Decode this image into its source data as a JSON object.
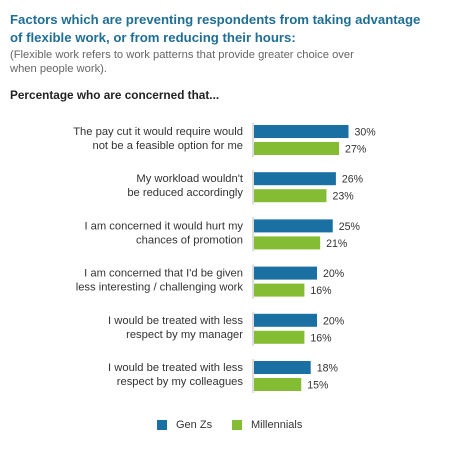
{
  "title": "Factors which are preventing respondents from taking advantage\nof flexible work, or from reducing their hours:",
  "subtitle": "(Flexible work refers to work patterns that provide greater choice over\nwhen people work).",
  "section_title": "Percentage who are concerned that...",
  "colors": {
    "gen_z": "#1a6fa3",
    "millennials": "#84bd34"
  },
  "chart_data": {
    "type": "bar",
    "orientation": "horizontal",
    "categories": [
      [
        "The pay cut it would require would",
        "not be a feasible option for me"
      ],
      [
        "My workload wouldn't",
        "be reduced accordingly"
      ],
      [
        "I am concerned it would hurt my",
        "chances of promotion"
      ],
      [
        "I am concerned that I'd be given",
        "less interesting / challenging work"
      ],
      [
        "I would be treated with less",
        "respect by my manager"
      ],
      [
        "I would be treated with less",
        "respect by my colleagues"
      ]
    ],
    "series": [
      {
        "name": "Gen Zs",
        "values": [
          30,
          26,
          25,
          20,
          20,
          18
        ]
      },
      {
        "name": "Millennials",
        "values": [
          27,
          23,
          21,
          16,
          16,
          15
        ]
      }
    ],
    "value_suffix": "%",
    "legend": "bottom"
  }
}
